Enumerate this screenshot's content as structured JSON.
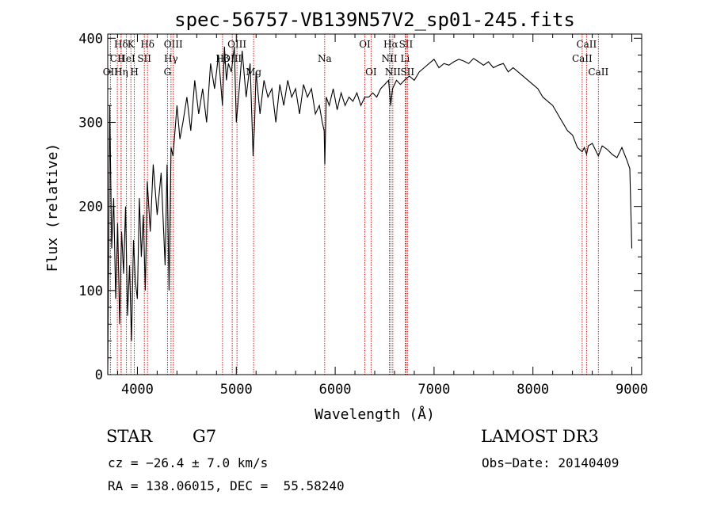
{
  "chart_data": {
    "type": "line",
    "title": "spec-56757-VB139N57V2_sp01-245.fits",
    "xlabel": "Wavelength (Å)",
    "ylabel": "Flux (relative)",
    "xlim": [
      3700,
      9100
    ],
    "ylim": [
      0,
      405
    ],
    "x_ticks": [
      4000,
      5000,
      6000,
      7000,
      8000,
      9000
    ],
    "y_ticks": [
      0,
      100,
      200,
      300,
      400
    ],
    "series": [
      {
        "name": "spectrum",
        "x": [
          3700,
          3720,
          3740,
          3760,
          3780,
          3800,
          3820,
          3840,
          3860,
          3880,
          3900,
          3920,
          3940,
          3960,
          3980,
          4000,
          4020,
          4040,
          4060,
          4080,
          4100,
          4130,
          4160,
          4200,
          4240,
          4280,
          4300,
          4320,
          4340,
          4360,
          4380,
          4400,
          4430,
          4460,
          4500,
          4540,
          4580,
          4620,
          4660,
          4700,
          4740,
          4780,
          4820,
          4860,
          4880,
          4900,
          4920,
          4950,
          4980,
          5000,
          5030,
          5060,
          5100,
          5140,
          5170,
          5185,
          5200,
          5240,
          5280,
          5320,
          5360,
          5400,
          5440,
          5480,
          5520,
          5560,
          5600,
          5640,
          5680,
          5720,
          5760,
          5800,
          5840,
          5870,
          5889,
          5895,
          5910,
          5940,
          5980,
          6020,
          6060,
          6100,
          6140,
          6180,
          6220,
          6260,
          6300,
          6340,
          6380,
          6420,
          6460,
          6500,
          6540,
          6562,
          6580,
          6620,
          6660,
          6700,
          6750,
          6800,
          6850,
          6900,
          6950,
          7000,
          7050,
          7100,
          7150,
          7200,
          7250,
          7300,
          7350,
          7400,
          7450,
          7500,
          7550,
          7600,
          7650,
          7700,
          7750,
          7800,
          7850,
          7900,
          7950,
          8000,
          8050,
          8100,
          8150,
          8200,
          8250,
          8300,
          8350,
          8400,
          8450,
          8498,
          8520,
          8542,
          8560,
          8600,
          8662,
          8700,
          8750,
          8800,
          8850,
          8900,
          8950,
          8980,
          9000
        ],
        "y": [
          0,
          320,
          150,
          210,
          90,
          180,
          60,
          170,
          120,
          200,
          70,
          130,
          40,
          160,
          110,
          90,
          210,
          140,
          190,
          100,
          230,
          170,
          250,
          190,
          240,
          130,
          250,
          100,
          270,
          260,
          290,
          320,
          280,
          300,
          330,
          290,
          350,
          310,
          340,
          300,
          370,
          340,
          380,
          320,
          390,
          350,
          370,
          360,
          390,
          300,
          340,
          385,
          330,
          370,
          260,
          300,
          360,
          310,
          350,
          330,
          340,
          300,
          345,
          320,
          350,
          330,
          340,
          310,
          345,
          330,
          340,
          310,
          320,
          300,
          290,
          250,
          330,
          320,
          340,
          315,
          335,
          320,
          330,
          325,
          335,
          320,
          330,
          330,
          335,
          330,
          340,
          345,
          350,
          320,
          340,
          350,
          345,
          350,
          355,
          350,
          360,
          365,
          370,
          375,
          365,
          370,
          368,
          372,
          375,
          373,
          370,
          376,
          372,
          368,
          372,
          365,
          368,
          370,
          360,
          365,
          360,
          355,
          350,
          345,
          340,
          330,
          325,
          320,
          310,
          300,
          290,
          285,
          270,
          265,
          270,
          262,
          272,
          275,
          260,
          272,
          268,
          262,
          258,
          270,
          255,
          245,
          150
        ]
      }
    ],
    "line_markers": [
      {
        "label": "Hδ",
        "x": 3835,
        "row": 0
      },
      {
        "label": "CII",
        "x": 3797,
        "row": 1
      },
      {
        "label": "OII",
        "x": 3727,
        "row": 2
      },
      {
        "label": "K",
        "x": 3934,
        "row": 0
      },
      {
        "label": "HeI",
        "x": 3889,
        "row": 1
      },
      {
        "label": "Hη",
        "x": 3835,
        "row": 2
      },
      {
        "label": "Hδ",
        "x": 4102,
        "row": 0
      },
      {
        "label": "SII",
        "x": 4070,
        "row": 1
      },
      {
        "label": "H",
        "x": 3969,
        "row": 2
      },
      {
        "label": "OIII",
        "x": 4363,
        "row": 0
      },
      {
        "label": "Hγ",
        "x": 4340,
        "row": 1
      },
      {
        "label": "G",
        "x": 4304,
        "row": 2
      },
      {
        "label": "OIII",
        "x": 5007,
        "row": 0
      },
      {
        "label": "OIII",
        "x": 4959,
        "row": 1
      },
      {
        "label": "Hβ",
        "x": 4861,
        "row": 1
      },
      {
        "label": "Mg",
        "x": 5175,
        "row": 2
      },
      {
        "label": "Na",
        "x": 5894,
        "row": 1
      },
      {
        "label": "OI",
        "x": 6300,
        "row": 0
      },
      {
        "label": "OI",
        "x": 6363,
        "row": 2
      },
      {
        "label": "Hα",
        "x": 6563,
        "row": 0
      },
      {
        "label": "SII",
        "x": 6716,
        "row": 0
      },
      {
        "label": "NII",
        "x": 6548,
        "row": 1
      },
      {
        "label": "Li",
        "x": 6708,
        "row": 1
      },
      {
        "label": "NII",
        "x": 6583,
        "row": 2
      },
      {
        "label": "SII",
        "x": 6731,
        "row": 2
      },
      {
        "label": "CaII",
        "x": 8542,
        "row": 0
      },
      {
        "label": "CaII",
        "x": 8498,
        "row": 1
      },
      {
        "label": "CaII",
        "x": 8662,
        "row": 2
      }
    ],
    "marker_color": "#cc0000",
    "line_color": "#000000"
  },
  "info": {
    "object_class": "STAR",
    "subclass": "G7",
    "survey": "LAMOST DR3",
    "cz": "cz = −26.4 ± 7.0 km/s",
    "obs_date": "Obs−Date: 20140409",
    "coords": "RA = 138.06015, DEC =  55.58240"
  }
}
